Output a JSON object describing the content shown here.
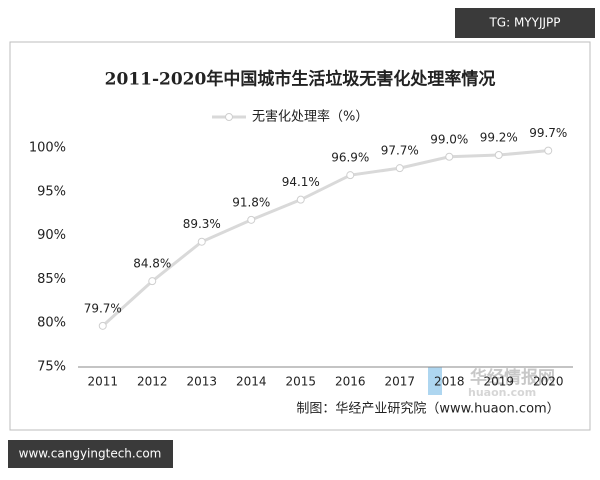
{
  "chart_data": {
    "type": "line",
    "title": "2011-2020年中国城市生活垃圾无害化处理率情况",
    "categories": [
      "2011",
      "2012",
      "2013",
      "2014",
      "2015",
      "2016",
      "2017",
      "2018",
      "2019",
      "2020"
    ],
    "series": [
      {
        "name": "无害化处理率（%）",
        "color": "#d9d9d9",
        "values": [
          79.7,
          84.8,
          89.3,
          91.8,
          94.1,
          96.9,
          97.7,
          99.0,
          99.2,
          99.7
        ],
        "value_labels": [
          "79.7%",
          "84.8%",
          "89.3%",
          "91.8%",
          "94.1%",
          "96.9%",
          "97.7%",
          "99.0%",
          "99.2%",
          "99.7%"
        ]
      }
    ],
    "ylim": [
      75,
      100
    ],
    "yticks": [
      {
        "value": 75,
        "label": "75%"
      },
      {
        "value": 80,
        "label": "80%"
      },
      {
        "value": 85,
        "label": "85%"
      },
      {
        "value": 90,
        "label": "90%"
      },
      {
        "value": 95,
        "label": "95%"
      },
      {
        "value": 100,
        "label": "100%"
      }
    ],
    "source": "制图：华经产业研究院（www.huaon.com）"
  },
  "badges": {
    "top": "TG: MYYJJPP",
    "bottom": "www.cangyingtech.com"
  },
  "watermark": {
    "title": "华经情报网",
    "url": "huaon.com"
  }
}
